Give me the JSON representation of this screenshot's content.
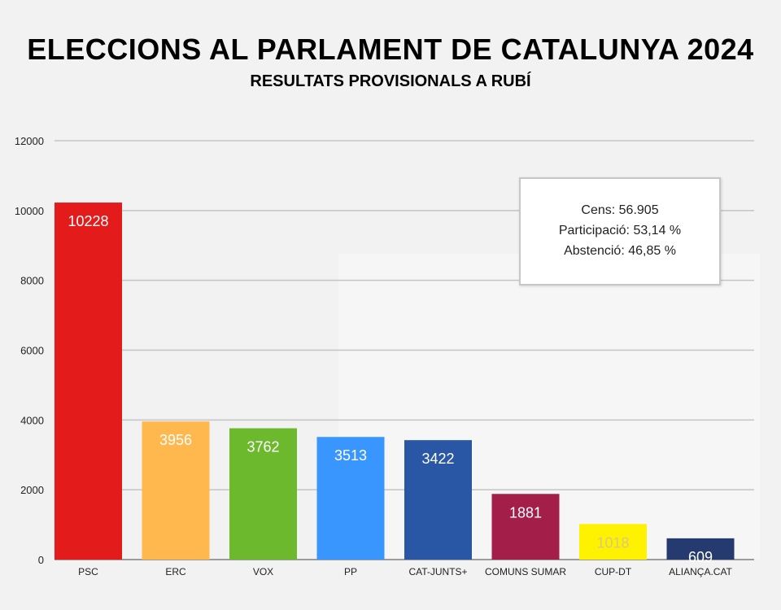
{
  "header": {
    "title": "ELECCIONS AL PARLAMENT DE CATALUNYA 2024",
    "subtitle": "RESULTATS PROVISIONALS A RUBÍ"
  },
  "info_box": {
    "line1": "Cens: 56.905",
    "line2": "Participació: 53,14 %",
    "line3": "Abstenció: 46,85 %"
  },
  "chart_data": {
    "type": "bar",
    "categories": [
      "PSC",
      "ERC",
      "VOX",
      "PP",
      "CAT-JUNTS+",
      "COMUNS SUMAR",
      "CUP-DT",
      "ALIANÇA.CAT"
    ],
    "values": [
      10228,
      3956,
      3762,
      3513,
      3422,
      1881,
      1018,
      609
    ],
    "colors": [
      "#e31b1b",
      "#ffb84d",
      "#6cb92d",
      "#3a96ff",
      "#2a56a6",
      "#a31f4a",
      "#fff200",
      "#253a6e"
    ],
    "label_colors": [
      "#ffffff",
      "#ffffff",
      "#ffffff",
      "#ffffff",
      "#ffffff",
      "#ffffff",
      "#d9c97a",
      "#ffffff"
    ],
    "ylim": [
      0,
      12000
    ],
    "yticks": [
      0,
      2000,
      4000,
      6000,
      8000,
      10000,
      12000
    ],
    "grid": true,
    "xlabel": "",
    "ylabel": ""
  }
}
